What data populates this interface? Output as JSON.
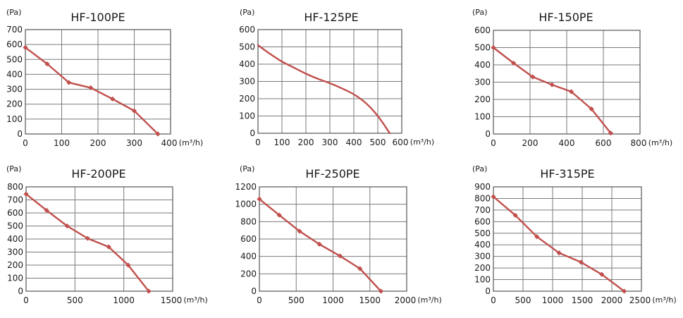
{
  "colors": {
    "curve": "#c0504d",
    "grid": "#7a7a7a",
    "frame": "#555555",
    "text": "#1a1a1a"
  },
  "chart_data": [
    {
      "type": "line",
      "title": "HF-100PE",
      "ylabel": "(Pa)",
      "xunit": "(m³/h)",
      "xlim": [
        0,
        400
      ],
      "ylim": [
        0,
        700
      ],
      "xticks": [
        "0",
        "100",
        "200",
        "300",
        "400"
      ],
      "yticks": [
        "0",
        "100",
        "200",
        "300",
        "400",
        "500",
        "600",
        "700"
      ],
      "markers": true,
      "x": [
        0,
        60,
        120,
        180,
        240,
        300,
        365
      ],
      "y": [
        580,
        470,
        345,
        310,
        235,
        155,
        0
      ]
    },
    {
      "type": "line",
      "title": "HF-125PE",
      "ylabel": "(Pa)",
      "xunit": "(m³/h)",
      "xlim": [
        0,
        600
      ],
      "ylim": [
        0,
        600
      ],
      "xticks": [
        "0",
        "100",
        "200",
        "300",
        "400",
        "500",
        "600"
      ],
      "yticks": [
        "0",
        "100",
        "200",
        "300",
        "400",
        "500",
        "600"
      ],
      "markers": false,
      "x": [
        0,
        50,
        100,
        150,
        200,
        250,
        300,
        350,
        400,
        450,
        500,
        550
      ],
      "y": [
        510,
        460,
        415,
        380,
        345,
        315,
        290,
        260,
        225,
        175,
        100,
        0
      ]
    },
    {
      "type": "line",
      "title": "HF-150PE",
      "ylabel": "(Pa)",
      "xunit": "(m³/h)",
      "xlim": [
        0,
        800
      ],
      "ylim": [
        0,
        600
      ],
      "xticks": [
        "0",
        "200",
        "400",
        "600",
        "800"
      ],
      "yticks": [
        "0",
        "100",
        "200",
        "300",
        "400",
        "500",
        "600"
      ],
      "markers": true,
      "x": [
        0,
        110,
        215,
        320,
        425,
        535,
        640
      ],
      "y": [
        500,
        410,
        330,
        285,
        245,
        145,
        5
      ]
    },
    {
      "type": "line",
      "title": "HF-200PE",
      "ylabel": "(Pa)",
      "xunit": "(m³/h)",
      "xlim": [
        0,
        1500
      ],
      "ylim": [
        0,
        800
      ],
      "xticks": [
        "0",
        "500",
        "1000",
        "1500"
      ],
      "yticks": [
        "0",
        "100",
        "200",
        "300",
        "400",
        "500",
        "600",
        "700",
        "800"
      ],
      "markers": true,
      "x": [
        0,
        210,
        420,
        630,
        845,
        1045,
        1255
      ],
      "y": [
        745,
        620,
        500,
        405,
        340,
        200,
        0
      ]
    },
    {
      "type": "line",
      "title": "HF-250PE",
      "ylabel": "(Pa)",
      "xunit": "(m³/h)",
      "xlim": [
        0,
        2000
      ],
      "ylim": [
        0,
        1200
      ],
      "xticks": [
        "0",
        "500",
        "1000",
        "1500",
        "2000"
      ],
      "yticks": [
        "0",
        "200",
        "400",
        "600",
        "800",
        "1000",
        "1200"
      ],
      "markers": true,
      "x": [
        0,
        270,
        545,
        815,
        1095,
        1365,
        1650
      ],
      "y": [
        1060,
        875,
        690,
        540,
        405,
        260,
        0
      ]
    },
    {
      "type": "line",
      "title": "HF-315PE",
      "ylabel": "(Pa)",
      "xunit": "(m³/h)",
      "xlim": [
        0,
        2500
      ],
      "ylim": [
        0,
        900
      ],
      "xticks": [
        "0",
        "500",
        "1000",
        "1500",
        "2000",
        "2500"
      ],
      "yticks": [
        "0",
        "100",
        "200",
        "300",
        "400",
        "500",
        "600",
        "700",
        "800",
        "900"
      ],
      "markers": true,
      "x": [
        0,
        370,
        735,
        1110,
        1480,
        1830,
        2210
      ],
      "y": [
        815,
        655,
        470,
        330,
        250,
        145,
        0
      ]
    }
  ]
}
